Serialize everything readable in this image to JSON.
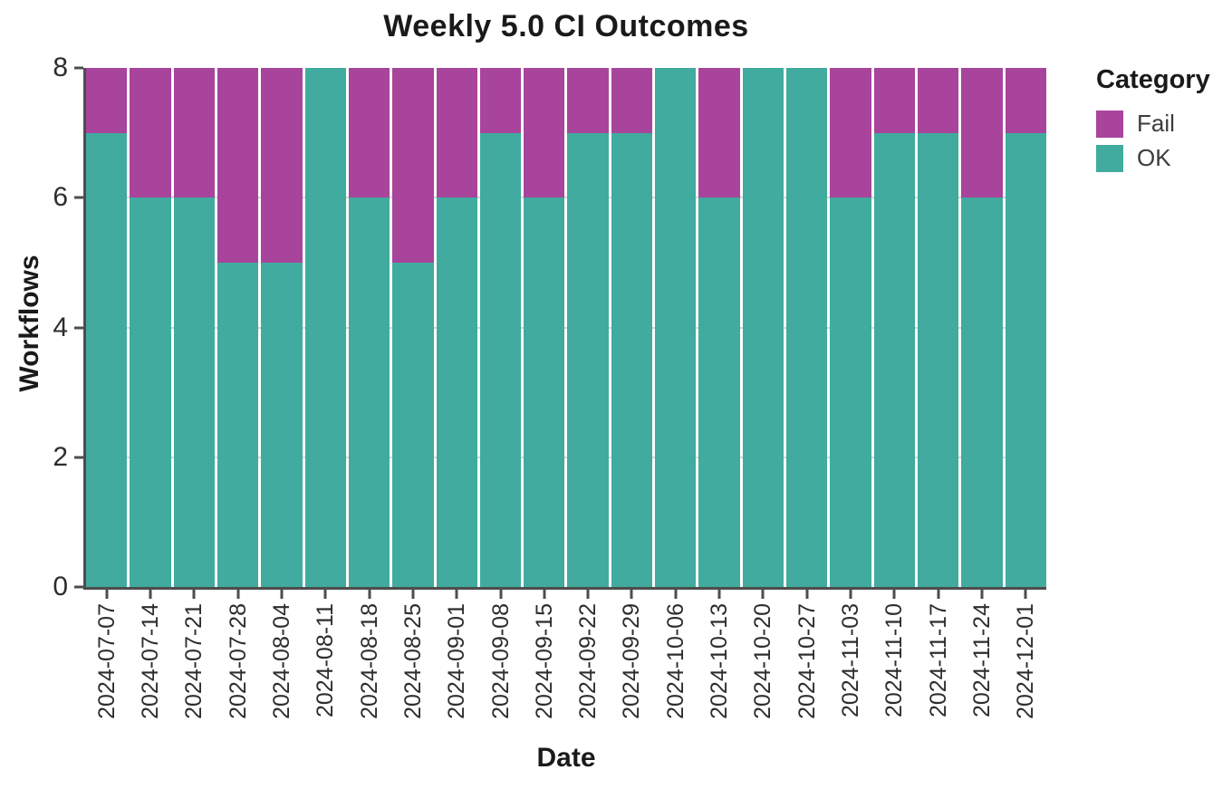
{
  "chart_data": {
    "type": "bar",
    "stacked": true,
    "title": "Weekly 5.0 CI Outcomes",
    "xlabel": "Date",
    "ylabel": "Workflows",
    "ylim": [
      0,
      8
    ],
    "yticks": [
      0,
      2,
      4,
      6,
      8
    ],
    "grid_yticks": [
      2,
      4,
      6
    ],
    "grid": "horizontal-light",
    "legend": {
      "title": "Category",
      "position": "right",
      "entries": [
        {
          "label": "Fail",
          "color": "#a8449c"
        },
        {
          "label": "OK",
          "color": "#40ab9e"
        }
      ]
    },
    "categories": [
      "2024-07-07",
      "2024-07-14",
      "2024-07-21",
      "2024-07-28",
      "2024-08-04",
      "2024-08-11",
      "2024-08-18",
      "2024-08-25",
      "2024-09-01",
      "2024-09-08",
      "2024-09-15",
      "2024-09-22",
      "2024-09-29",
      "2024-10-06",
      "2024-10-13",
      "2024-10-20",
      "2024-10-27",
      "2024-11-03",
      "2024-11-10",
      "2024-11-17",
      "2024-11-24",
      "2024-12-01"
    ],
    "series": [
      {
        "name": "Fail",
        "color": "#a8449c",
        "values": [
          1,
          2,
          2,
          3,
          3,
          0,
          2,
          3,
          2,
          1,
          2,
          1,
          1,
          0,
          2,
          0,
          0,
          2,
          1,
          1,
          2,
          1
        ]
      },
      {
        "name": "OK",
        "color": "#40ab9e",
        "values": [
          7,
          6,
          6,
          5,
          5,
          8,
          6,
          5,
          6,
          7,
          6,
          7,
          7,
          8,
          6,
          8,
          8,
          6,
          7,
          7,
          6,
          7
        ]
      }
    ]
  }
}
